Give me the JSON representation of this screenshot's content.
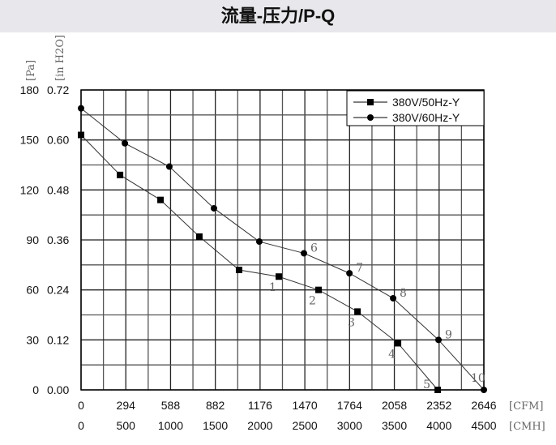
{
  "title": "流量-压力/P-Q",
  "chart_data": {
    "type": "line",
    "title": "流量-压力/P-Q",
    "xlabel_primary": "[CFM]",
    "xlabel_secondary": "[CMH]",
    "ylabel_primary": "[Pa]",
    "ylabel_secondary": "[in H2O]",
    "xlim": [
      0,
      2646
    ],
    "ylim": [
      0,
      180
    ],
    "x_ticks_cfm": [
      "0",
      "294",
      "588",
      "882",
      "1176",
      "1470",
      "1764",
      "2058",
      "2352",
      "2646"
    ],
    "x_ticks_cmh": [
      "0",
      "500",
      "1000",
      "1500",
      "2000",
      "2500",
      "3000",
      "3500",
      "4000",
      "4500"
    ],
    "y_ticks_pa": [
      "0",
      "30",
      "60",
      "90",
      "120",
      "150",
      "180"
    ],
    "y_ticks_inh2o": [
      "0.00",
      "0.12",
      "0.24",
      "0.36",
      "0.48",
      "0.60",
      "0.72"
    ],
    "grid": true,
    "legend_position": "top-right",
    "series": [
      {
        "name": "380V/50Hz-Y",
        "marker": "square",
        "x": [
          0,
          256,
          522,
          777,
          1038,
          1299,
          1560,
          1816,
          2082,
          2343
        ],
        "y": [
          153,
          129,
          114,
          92,
          72,
          68,
          60,
          47,
          28,
          0
        ],
        "point_labels": [
          "",
          "",
          "",
          "",
          "",
          "1",
          "2",
          "3",
          "4",
          "5"
        ]
      },
      {
        "name": "380V/60Hz-Y",
        "marker": "circle",
        "x": [
          0,
          288,
          580,
          873,
          1171,
          1464,
          1763,
          2050,
          2348,
          2646
        ],
        "y": [
          169,
          148,
          134,
          109,
          89,
          82,
          70,
          55,
          30,
          0
        ],
        "point_labels": [
          "",
          "",
          "",
          "",
          "",
          "6",
          "7",
          "8",
          "9",
          "10"
        ]
      }
    ]
  }
}
